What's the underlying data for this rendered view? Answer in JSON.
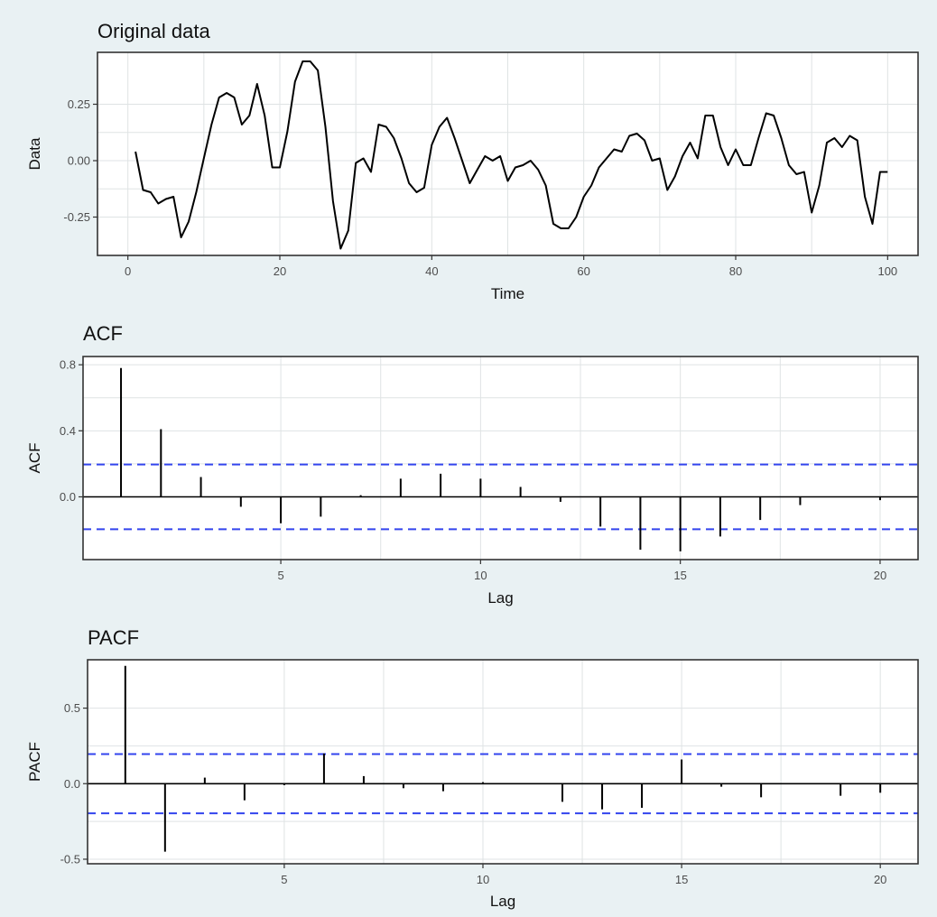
{
  "chart_data": [
    {
      "type": "line",
      "title": "Original data",
      "xlabel": "Time",
      "ylabel": "Data",
      "xlim": [
        -4,
        104
      ],
      "ylim": [
        -0.42,
        0.48
      ],
      "xticks": [
        0,
        20,
        40,
        60,
        80,
        100
      ],
      "xtick_labels": [
        "0",
        "20",
        "40",
        "60",
        "80",
        "100"
      ],
      "yticks": [
        -0.25,
        0.0,
        0.25
      ],
      "ytick_labels": [
        "-0.25",
        "0.00",
        "0.25"
      ],
      "grid": true,
      "line_color": "#000000",
      "series": [
        {
          "x": [
            1,
            2,
            3,
            4,
            5,
            6,
            7,
            8,
            9,
            10,
            11,
            12,
            13,
            14,
            15,
            16,
            17,
            18,
            19,
            20,
            21,
            22,
            23,
            24,
            25,
            26,
            27,
            28,
            29,
            30,
            31,
            32,
            33,
            34,
            35,
            36,
            37,
            38,
            39,
            40,
            41,
            42,
            43,
            44,
            45,
            46,
            47,
            48,
            49,
            50,
            51,
            52,
            53,
            54,
            55,
            56,
            57,
            58,
            59,
            60,
            61,
            62,
            63,
            64,
            65,
            66,
            67,
            68,
            69,
            70,
            71,
            72,
            73,
            74,
            75,
            76,
            77,
            78,
            79,
            80,
            81,
            82,
            83,
            84,
            85,
            86,
            87,
            88,
            89,
            90,
            91,
            92,
            93,
            94,
            95,
            96,
            97,
            98,
            99,
            100
          ],
          "values": [
            0.04,
            -0.13,
            -0.14,
            -0.19,
            -0.17,
            -0.16,
            -0.34,
            -0.27,
            -0.14,
            0.01,
            0.16,
            0.28,
            0.3,
            0.28,
            0.16,
            0.2,
            0.34,
            0.2,
            -0.03,
            -0.03,
            0.13,
            0.35,
            0.44,
            0.44,
            0.4,
            0.15,
            -0.18,
            -0.39,
            -0.31,
            -0.01,
            0.01,
            -0.05,
            0.16,
            0.15,
            0.1,
            0.01,
            -0.1,
            -0.14,
            -0.12,
            0.07,
            0.15,
            0.19,
            0.1,
            0.0,
            -0.1,
            -0.04,
            0.02,
            0.0,
            0.02,
            -0.09,
            -0.03,
            -0.02,
            0.0,
            -0.04,
            -0.11,
            -0.28,
            -0.3,
            -0.3,
            -0.25,
            -0.16,
            -0.11,
            -0.03,
            0.01,
            0.05,
            0.04,
            0.11,
            0.12,
            0.09,
            0.0,
            0.01,
            -0.13,
            -0.07,
            0.02,
            0.08,
            0.01,
            0.2,
            0.2,
            0.06,
            -0.02,
            0.05,
            -0.02,
            -0.02,
            0.1,
            0.21,
            0.2,
            0.1,
            -0.02,
            -0.06,
            -0.05,
            -0.23,
            -0.11,
            0.08,
            0.1,
            0.06,
            0.11,
            0.09,
            -0.16,
            -0.28,
            -0.05,
            -0.05
          ]
        }
      ]
    },
    {
      "type": "bar",
      "title": "ACF",
      "xlabel": "Lag",
      "ylabel": "ACF",
      "xlim": [
        0.05,
        20.95
      ],
      "ylim": [
        -0.38,
        0.85
      ],
      "xticks": [
        5,
        10,
        15,
        20
      ],
      "xtick_labels": [
        "5",
        "10",
        "15",
        "20"
      ],
      "yticks": [
        0.0,
        0.4,
        0.8
      ],
      "ytick_labels": [
        "0.0",
        "0.4",
        "0.8"
      ],
      "grid": true,
      "confidence_bounds": [
        0.196,
        -0.196
      ],
      "bound_color": "#3344ee",
      "lags": [
        1,
        2,
        3,
        4,
        5,
        6,
        7,
        8,
        9,
        10,
        11,
        12,
        13,
        14,
        15,
        16,
        17,
        18,
        19,
        20
      ],
      "values": [
        0.78,
        0.41,
        0.12,
        -0.06,
        -0.16,
        -0.12,
        0.01,
        0.11,
        0.14,
        0.11,
        0.06,
        -0.03,
        -0.18,
        -0.32,
        -0.33,
        -0.24,
        -0.14,
        -0.05,
        0.0,
        -0.02
      ]
    },
    {
      "type": "bar",
      "title": "PACF",
      "xlabel": "Lag",
      "ylabel": "PACF",
      "xlim": [
        0.05,
        20.95
      ],
      "ylim": [
        -0.53,
        0.82
      ],
      "xticks": [
        5,
        10,
        15,
        20
      ],
      "xtick_labels": [
        "5",
        "10",
        "15",
        "20"
      ],
      "yticks": [
        -0.5,
        0.0,
        0.5
      ],
      "ytick_labels": [
        "-0.5",
        "0.0",
        "0.5"
      ],
      "grid": true,
      "confidence_bounds": [
        0.196,
        -0.196
      ],
      "bound_color": "#3344ee",
      "lags": [
        1,
        2,
        3,
        4,
        5,
        6,
        7,
        8,
        9,
        10,
        11,
        12,
        13,
        14,
        15,
        16,
        17,
        18,
        19,
        20
      ],
      "values": [
        0.78,
        -0.45,
        0.04,
        -0.11,
        -0.01,
        0.2,
        0.05,
        -0.03,
        -0.05,
        0.01,
        0.0,
        -0.12,
        -0.17,
        -0.16,
        0.16,
        -0.02,
        -0.09,
        0.0,
        -0.08,
        -0.06
      ]
    }
  ]
}
